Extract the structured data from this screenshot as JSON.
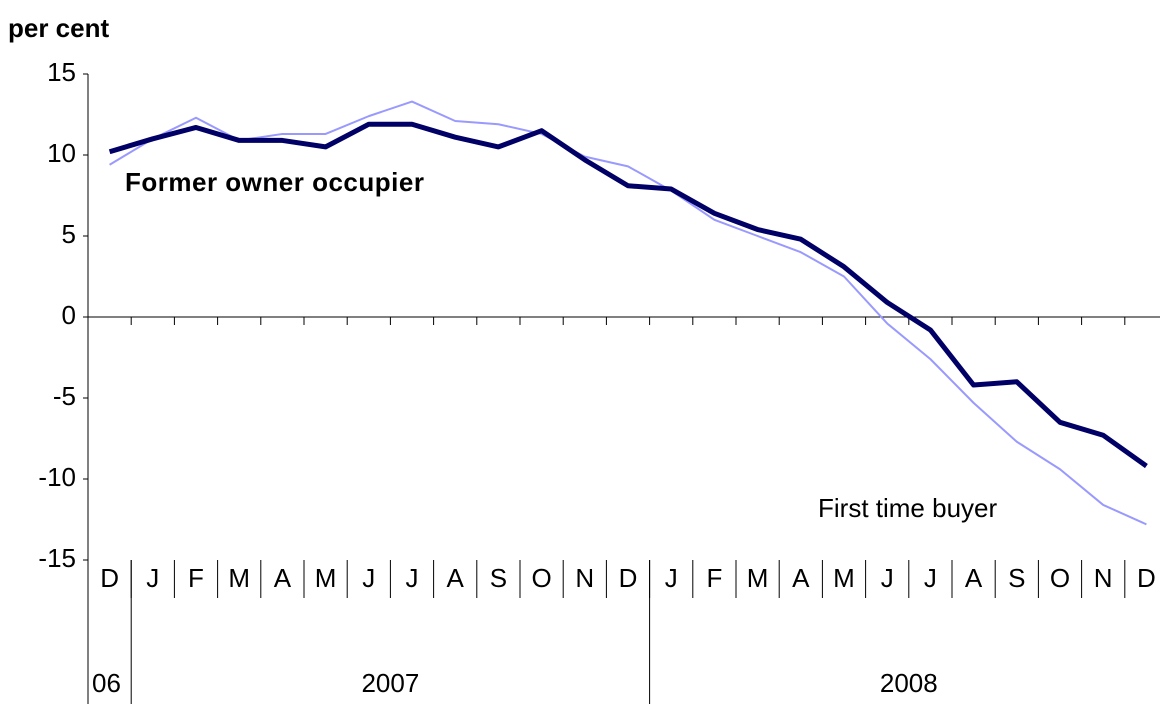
{
  "chart_data": {
    "type": "line",
    "y_label": "per cent",
    "categories": [
      "D",
      "J",
      "F",
      "M",
      "A",
      "M",
      "J",
      "J",
      "A",
      "S",
      "O",
      "N",
      "D",
      "J",
      "F",
      "M",
      "A",
      "M",
      "J",
      "J",
      "A",
      "S",
      "O",
      "N",
      "D"
    ],
    "year_labels": [
      "06",
      "2007",
      "2008"
    ],
    "series": [
      {
        "name": "Former owner occupier",
        "color": "#000066",
        "values": [
          10.2,
          11.0,
          11.7,
          10.9,
          10.9,
          10.5,
          11.9,
          11.9,
          11.1,
          10.5,
          11.5,
          9.7,
          8.1,
          7.9,
          6.4,
          5.4,
          4.8,
          3.1,
          0.9,
          -0.8,
          -4.2,
          -4.0,
          -6.5,
          -7.3,
          -9.2
        ]
      },
      {
        "name": "First time buyer",
        "color": "#9999ff",
        "values": [
          9.4,
          11.0,
          12.3,
          10.9,
          11.3,
          11.3,
          12.4,
          13.3,
          12.1,
          11.9,
          11.3,
          9.9,
          9.3,
          7.8,
          6.0,
          5.0,
          4.0,
          2.5,
          -0.4,
          -2.6,
          -5.3,
          -7.7,
          -9.4,
          -11.6,
          -12.8
        ]
      }
    ],
    "ylim": [
      -15,
      15
    ],
    "yticks": [
      15,
      10,
      5,
      0,
      -5,
      -10,
      -15
    ]
  }
}
